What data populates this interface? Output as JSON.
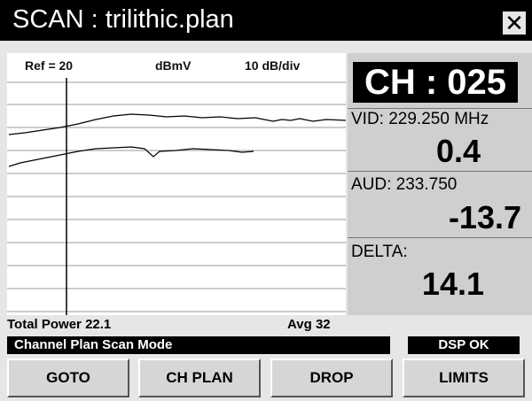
{
  "title": "SCAN : trilithic.plan",
  "plot": {
    "ref": "Ref = 20",
    "units": "dBmV",
    "scale": "10 dB/div"
  },
  "channel": "CH : 025",
  "video": {
    "label": "VID: 229.250 MHz",
    "level": "0.4"
  },
  "audio": {
    "label": "AUD: 233.750",
    "level": "-13.7"
  },
  "delta": {
    "label": "DELTA:",
    "value": "14.1"
  },
  "status": {
    "total_power": "Total Power 22.1",
    "average": "Avg 32",
    "mode": "Channel Plan Scan Mode",
    "dsp": "DSP OK"
  },
  "buttons": [
    "GOTO",
    "CH PLAN",
    "DROP",
    "LIMITS"
  ]
}
